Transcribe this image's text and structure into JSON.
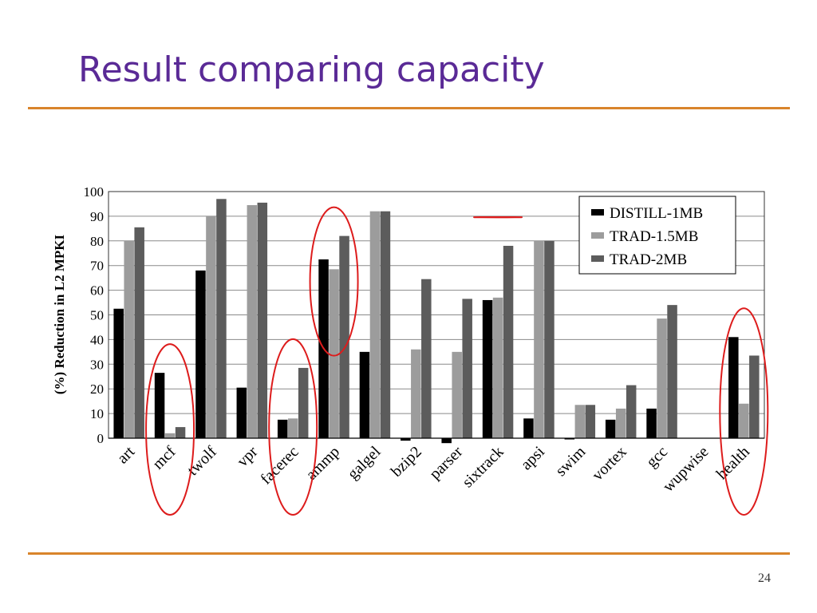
{
  "slide": {
    "title": "Result comparing capacity",
    "page_number": "24"
  },
  "colors": {
    "title": "#5a2a96",
    "rule": "#d9842b",
    "highlight_circle": "#dd1c1c"
  },
  "chart_data": {
    "type": "bar",
    "title": "",
    "xlabel": "",
    "ylabel": "(%) Reduction in L2 MPKI",
    "ylim": [
      0,
      100
    ],
    "yticks": [
      0,
      10,
      20,
      30,
      40,
      50,
      60,
      70,
      80,
      90,
      100
    ],
    "grid": true,
    "legend_position": "top-right",
    "categories": [
      "art",
      "mcf",
      "twolf",
      "vpr",
      "facerec",
      "ammp",
      "galgel",
      "bzip2",
      "parser",
      "sixtrack",
      "apsi",
      "swim",
      "vortex",
      "gcc",
      "wupwise",
      "health"
    ],
    "series": [
      {
        "name": "DISTILL-1MB",
        "color": "#000000",
        "values": [
          52.5,
          26.5,
          68,
          20.5,
          7.5,
          72.5,
          35,
          -1,
          -2,
          56,
          8,
          -0.5,
          7.5,
          12,
          0,
          41
        ]
      },
      {
        "name": "TRAD-1.5MB",
        "color": "#9c9c9c",
        "values": [
          80,
          2,
          90,
          94.5,
          8,
          68.5,
          92,
          36,
          35,
          57,
          80,
          13.5,
          12,
          48.5,
          0,
          14
        ]
      },
      {
        "name": "TRAD-2MB",
        "color": "#5c5c5c",
        "values": [
          85.5,
          4.5,
          97,
          95.5,
          28.5,
          82,
          92,
          64.5,
          56.5,
          78,
          80,
          13.5,
          21.5,
          54,
          0,
          33.5
        ]
      }
    ],
    "highlighted_categories": [
      "mcf",
      "facerec",
      "ammp",
      "sixtrack",
      "health"
    ]
  }
}
